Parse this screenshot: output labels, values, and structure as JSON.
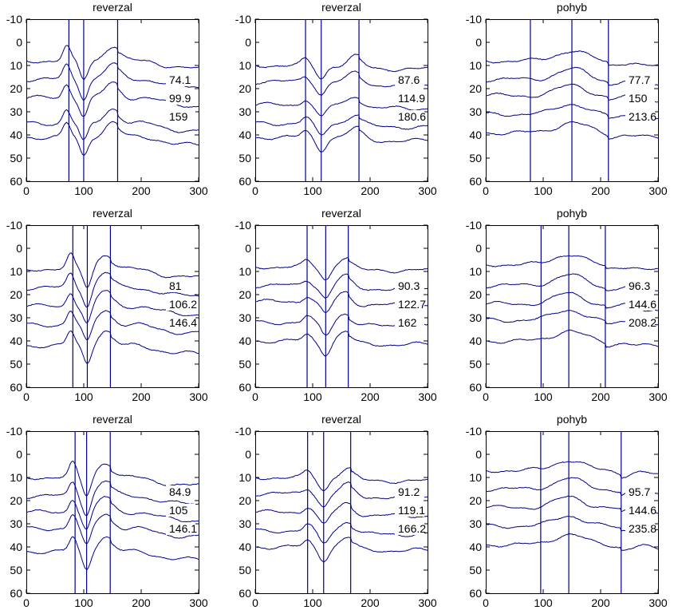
{
  "figure": {
    "background": "#ffffff",
    "line_color": "#00008b",
    "axes_color": "#000000"
  },
  "chart_data": [
    {
      "type": "line",
      "title": "reverzal",
      "xlim": [
        0,
        300
      ],
      "ylim": [
        -10,
        60
      ],
      "y_reversed": true,
      "xticks": [
        0,
        100,
        200,
        300
      ],
      "yticks": [
        -10,
        0,
        10,
        20,
        30,
        40,
        50,
        60
      ],
      "markers": [
        74.1,
        99.9,
        159
      ],
      "labels": [
        "74.1",
        "99.9",
        "159"
      ],
      "offsets": [
        8,
        16,
        24,
        35,
        41
      ],
      "wave": "sharp-neg"
    },
    {
      "type": "line",
      "title": "reverzal",
      "xlim": [
        0,
        300
      ],
      "ylim": [
        -10,
        60
      ],
      "y_reversed": true,
      "xticks": [
        0,
        100,
        200,
        300
      ],
      "yticks": [
        -10,
        0,
        10,
        20,
        30,
        40,
        50,
        60
      ],
      "markers": [
        87.6,
        114.9,
        180.6
      ],
      "labels": [
        "87.6",
        "114.9",
        "180.6"
      ],
      "offsets": [
        10,
        17,
        27,
        35,
        41
      ],
      "wave": "neg"
    },
    {
      "type": "line",
      "title": "pohyb",
      "xlim": [
        0,
        300
      ],
      "ylim": [
        -10,
        60
      ],
      "y_reversed": true,
      "xticks": [
        0,
        100,
        200,
        300
      ],
      "yticks": [
        -10,
        0,
        10,
        20,
        30,
        40,
        50,
        60
      ],
      "markers": [
        77.7,
        150,
        213.6
      ],
      "labels": [
        "77.7",
        "150",
        "213.6"
      ],
      "offsets": [
        8,
        16,
        23,
        31,
        39
      ],
      "wave": "pos"
    },
    {
      "type": "line",
      "title": "reverzal",
      "xlim": [
        0,
        300
      ],
      "ylim": [
        -10,
        60
      ],
      "y_reversed": true,
      "xticks": [
        0,
        100,
        200,
        300
      ],
      "yticks": [
        -10,
        0,
        10,
        20,
        30,
        40,
        50,
        60
      ],
      "markers": [
        81,
        106.2,
        146.4
      ],
      "labels": [
        "81",
        "106.2",
        "146.4"
      ],
      "offsets": [
        9,
        17,
        25,
        33,
        42
      ],
      "wave": "sharp-neg"
    },
    {
      "type": "line",
      "title": "reverzal",
      "xlim": [
        0,
        300
      ],
      "ylim": [
        -10,
        60
      ],
      "y_reversed": true,
      "xticks": [
        0,
        100,
        200,
        300
      ],
      "yticks": [
        -10,
        0,
        10,
        20,
        30,
        40,
        50,
        60
      ],
      "markers": [
        90.3,
        122.7,
        162
      ],
      "labels": [
        "90.3",
        "122.7",
        "162"
      ],
      "offsets": [
        8,
        16,
        23,
        32,
        40
      ],
      "wave": "neg"
    },
    {
      "type": "line",
      "title": "pohyb",
      "xlim": [
        0,
        300
      ],
      "ylim": [
        -10,
        60
      ],
      "y_reversed": true,
      "xticks": [
        0,
        100,
        200,
        300
      ],
      "yticks": [
        -10,
        0,
        10,
        20,
        30,
        40,
        50,
        60
      ],
      "markers": [
        96.3,
        144.6,
        208.2
      ],
      "labels": [
        "96.3",
        "144.6",
        "208.2"
      ],
      "offsets": [
        7,
        16,
        24,
        31,
        40
      ],
      "wave": "pos"
    },
    {
      "type": "line",
      "title": "reverzal",
      "xlim": [
        0,
        300
      ],
      "ylim": [
        -10,
        60
      ],
      "y_reversed": true,
      "xticks": [
        0,
        100,
        200,
        300
      ],
      "yticks": [
        -10,
        0,
        10,
        20,
        30,
        40,
        50,
        60
      ],
      "markers": [
        84.9,
        105,
        146.1
      ],
      "labels": [
        "84.9",
        "105",
        "146.1"
      ],
      "offsets": [
        10,
        18,
        25,
        32,
        42
      ],
      "wave": "sharp-neg"
    },
    {
      "type": "line",
      "title": "reverzal",
      "xlim": [
        0,
        300
      ],
      "ylim": [
        -10,
        60
      ],
      "y_reversed": true,
      "xticks": [
        0,
        100,
        200,
        300
      ],
      "yticks": [
        -10,
        0,
        10,
        20,
        30,
        40,
        50,
        60
      ],
      "markers": [
        91.2,
        119.1,
        166.2
      ],
      "labels": [
        "91.2",
        "119.1",
        "166.2"
      ],
      "offsets": [
        10,
        17,
        25,
        33,
        40
      ],
      "wave": "neg"
    },
    {
      "type": "line",
      "title": "pohyb",
      "xlim": [
        0,
        300
      ],
      "ylim": [
        -10,
        60
      ],
      "y_reversed": true,
      "xticks": [
        0,
        100,
        200,
        300
      ],
      "yticks": [
        -10,
        0,
        10,
        20,
        30,
        40,
        50,
        60
      ],
      "markers": [
        95.7,
        144.6,
        235.8
      ],
      "labels": [
        "95.7",
        "144.6",
        "235.8"
      ],
      "offsets": [
        7,
        15,
        23,
        31,
        39
      ],
      "wave": "pos"
    }
  ]
}
